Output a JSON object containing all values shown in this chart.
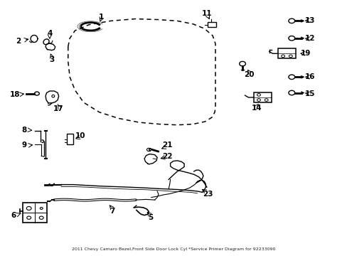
{
  "title": "2011 Chevy Camaro Bezel,Front Side Door Lock Cyl *Service Primer Diagram for 92233090",
  "background_color": "#ffffff",
  "figsize": [
    4.89,
    3.6
  ],
  "dpi": 100,
  "door": {
    "x": [
      0.195,
      0.195,
      0.2,
      0.215,
      0.24,
      0.285,
      0.34,
      0.4,
      0.46,
      0.51,
      0.555,
      0.59,
      0.61,
      0.618,
      0.62,
      0.62,
      0.612,
      0.588,
      0.555,
      0.51,
      0.455,
      0.39,
      0.318,
      0.255,
      0.215,
      0.2,
      0.195
    ],
    "y": [
      0.82,
      0.76,
      0.7,
      0.648,
      0.6,
      0.562,
      0.538,
      0.522,
      0.515,
      0.512,
      0.515,
      0.525,
      0.542,
      0.562,
      0.582,
      0.83,
      0.862,
      0.89,
      0.908,
      0.92,
      0.925,
      0.928,
      0.92,
      0.905,
      0.882,
      0.852,
      0.82
    ]
  }
}
